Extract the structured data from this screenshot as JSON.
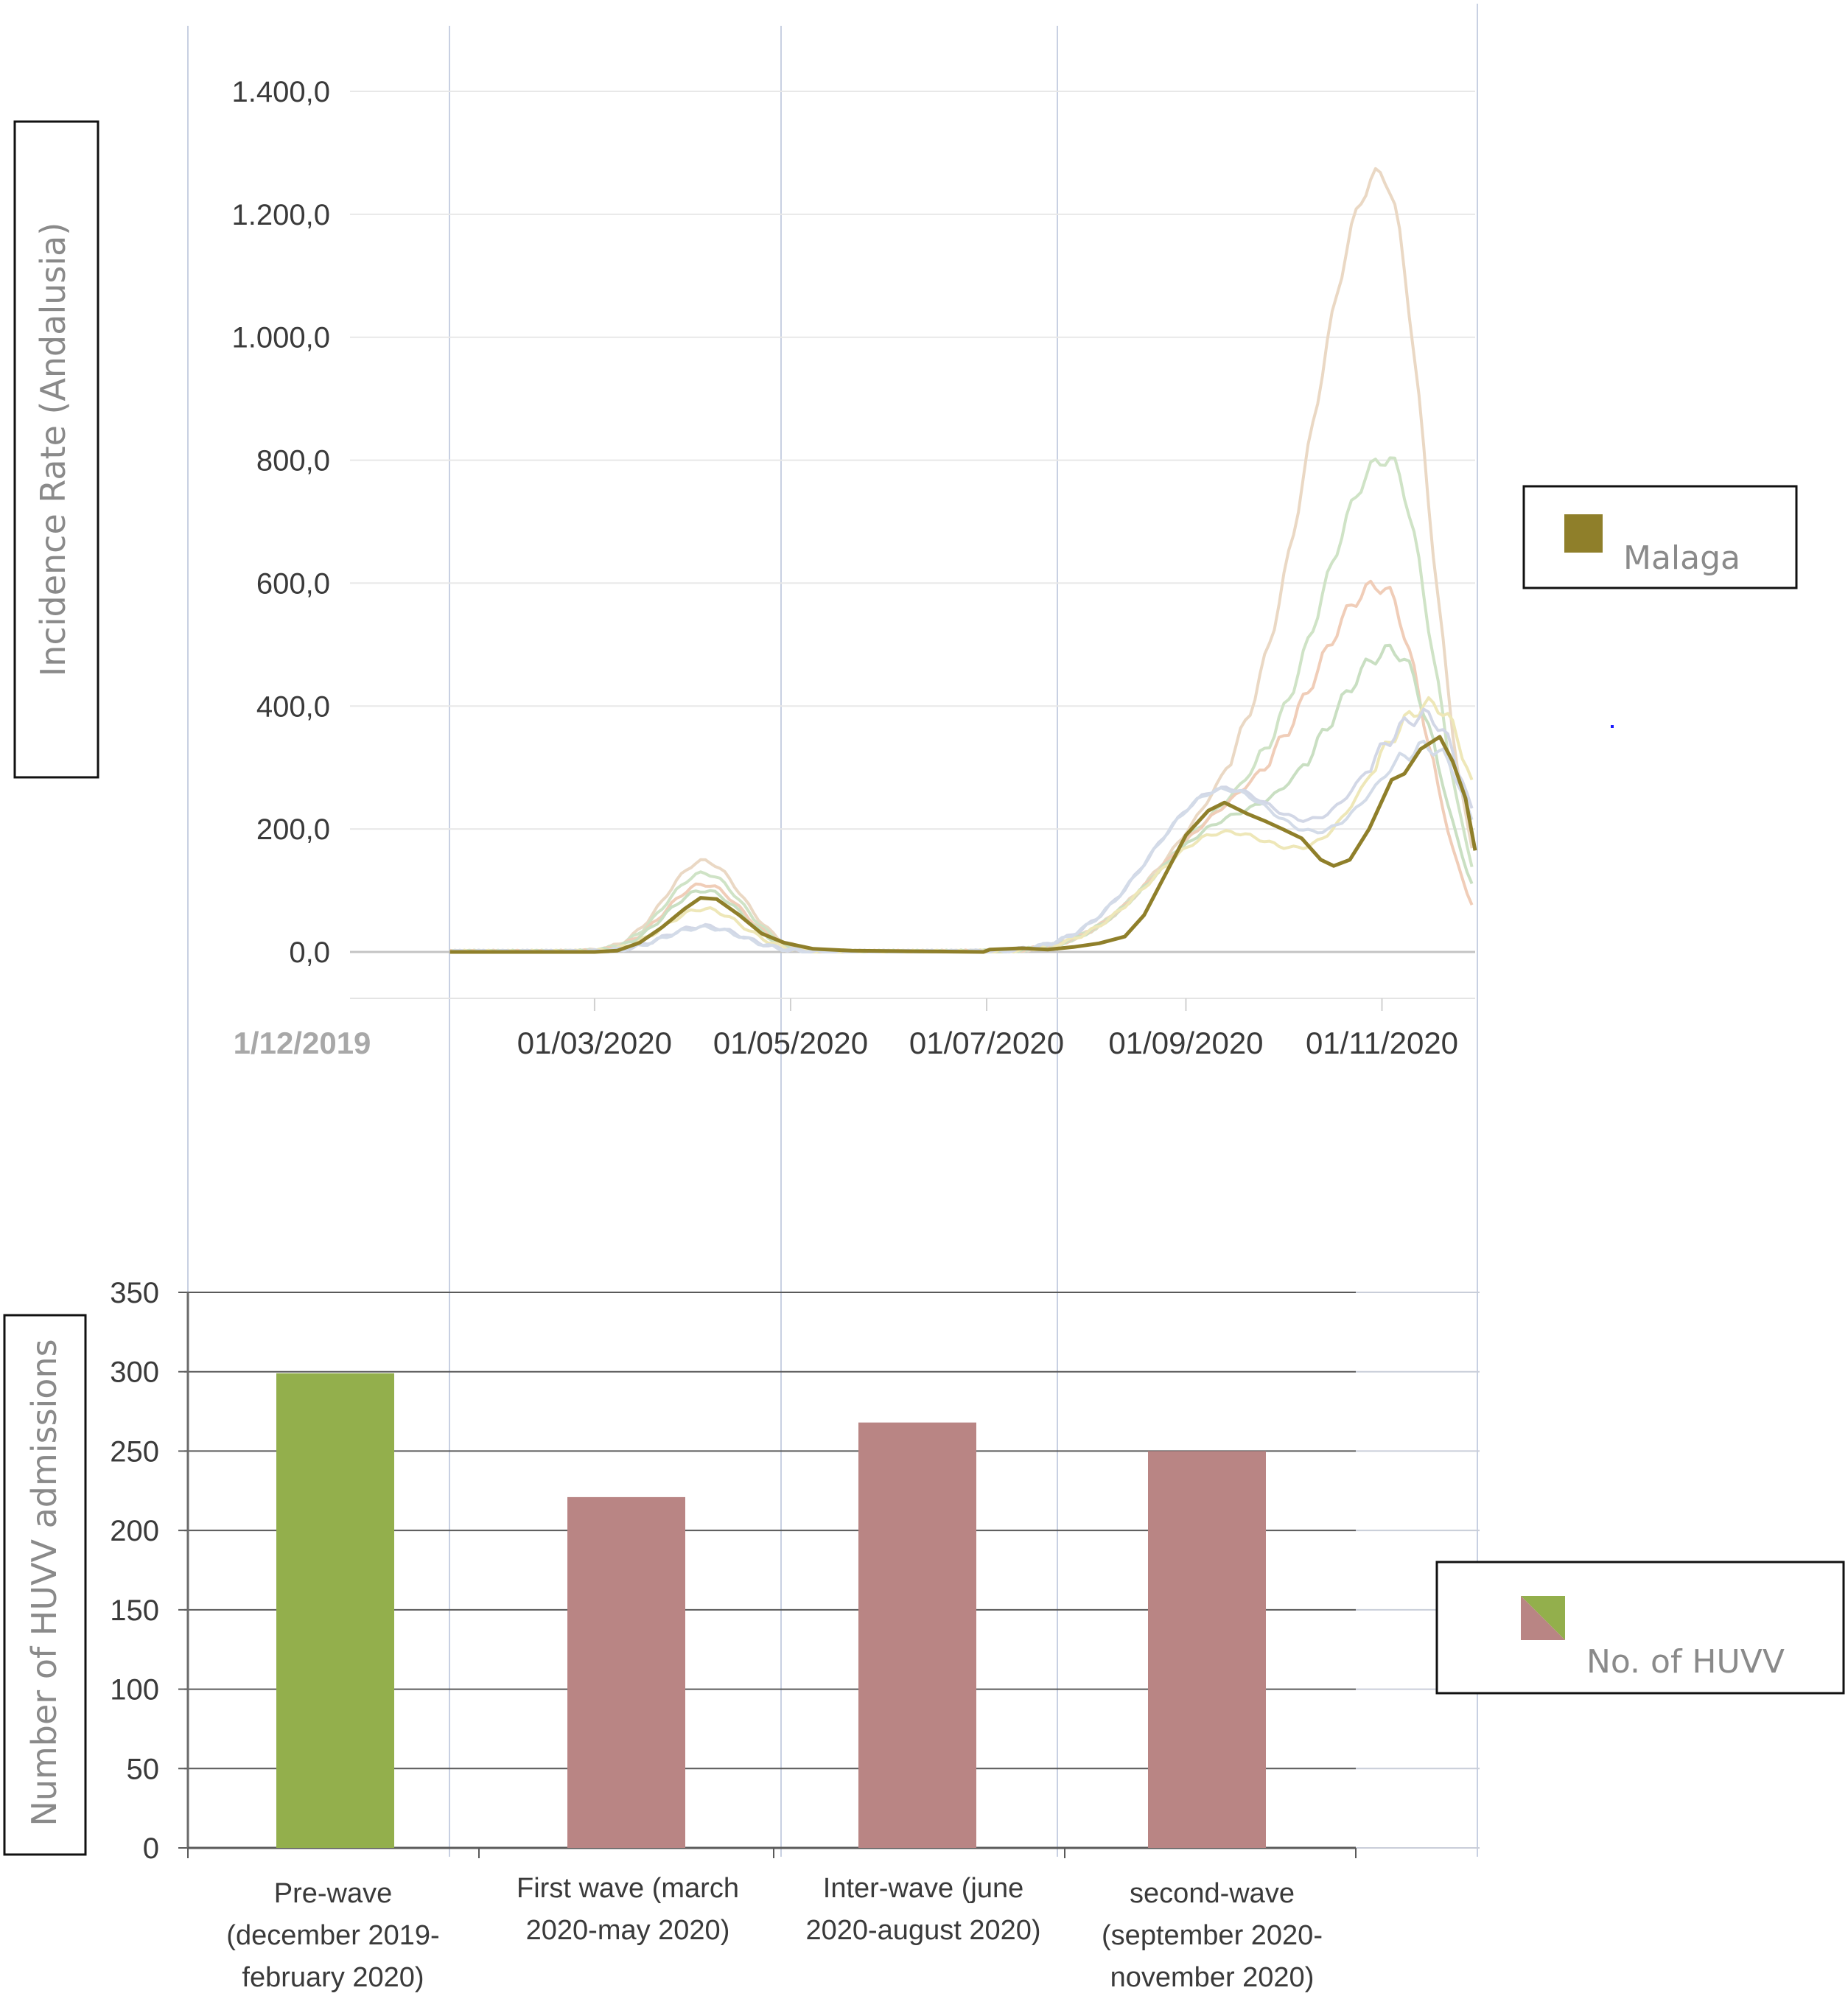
{
  "chart_data": [
    {
      "type": "line",
      "ylabel": "Incidence Rate (Andalusia)",
      "ylim": [
        0,
        1400
      ],
      "y_ticks": [
        "0,0",
        "200,0",
        "400,0",
        "600,0",
        "800,0",
        "1.000,0",
        "1.200,0",
        "1.400,0"
      ],
      "x_tick_labels": [
        "1/12/2019",
        "01/03/2020",
        "01/05/2020",
        "01/07/2020",
        "01/09/2020",
        "01/11/2020"
      ],
      "x_range": [
        "2019-12-01",
        "2020-11-30"
      ],
      "highlighted_series": {
        "name": "Malaga",
        "color": "#8f7f2a",
        "points": [
          [
            "2020-01-16",
            0
          ],
          [
            "2020-03-01",
            0
          ],
          [
            "2020-03-08",
            2
          ],
          [
            "2020-03-15",
            15
          ],
          [
            "2020-03-22",
            40
          ],
          [
            "2020-03-29",
            70
          ],
          [
            "2020-04-03",
            88
          ],
          [
            "2020-04-08",
            86
          ],
          [
            "2020-04-15",
            60
          ],
          [
            "2020-04-22",
            30
          ],
          [
            "2020-04-29",
            15
          ],
          [
            "2020-05-08",
            5
          ],
          [
            "2020-05-20",
            2
          ],
          [
            "2020-06-10",
            1
          ],
          [
            "2020-06-30",
            0
          ],
          [
            "2020-07-02",
            4
          ],
          [
            "2020-07-12",
            6
          ],
          [
            "2020-07-20",
            4
          ],
          [
            "2020-07-28",
            8
          ],
          [
            "2020-08-05",
            14
          ],
          [
            "2020-08-13",
            25
          ],
          [
            "2020-08-19",
            60
          ],
          [
            "2020-08-25",
            120
          ],
          [
            "2020-09-01",
            190
          ],
          [
            "2020-09-08",
            230
          ],
          [
            "2020-09-13",
            243
          ],
          [
            "2020-09-20",
            225
          ],
          [
            "2020-09-26",
            212
          ],
          [
            "2020-10-01",
            200
          ],
          [
            "2020-10-07",
            185
          ],
          [
            "2020-10-13",
            150
          ],
          [
            "2020-10-17",
            140
          ],
          [
            "2020-10-22",
            150
          ],
          [
            "2020-10-28",
            200
          ],
          [
            "2020-11-04",
            280
          ],
          [
            "2020-11-08",
            290
          ],
          [
            "2020-11-13",
            330
          ],
          [
            "2020-11-19",
            350
          ],
          [
            "2020-11-23",
            310
          ],
          [
            "2020-11-27",
            250
          ],
          [
            "2020-11-30",
            165
          ]
        ]
      },
      "background_series": [
        {
          "color": "#ead8c4",
          "wave1_peak": 148,
          "wave2_peak": 1400,
          "wave2_peak_date": "2020-11-01",
          "end_value": 300
        },
        {
          "color": "#cfe3c6",
          "wave1_peak": 128,
          "wave2_peak": 940,
          "wave2_peak_date": "2020-11-03",
          "end_value": 280
        },
        {
          "color": "#f0cdb8",
          "wave1_peak": 110,
          "wave2_peak": 730,
          "wave2_peak_date": "2020-11-01",
          "end_value": 240
        },
        {
          "color": "#c9dfc2",
          "wave1_peak": 100,
          "wave2_peak": 630,
          "wave2_peak_date": "2020-11-05",
          "end_value": 270
        },
        {
          "color": "#eee7b8",
          "wave1_peak": 70,
          "wave2_peak": 550,
          "wave2_peak_date": "2020-11-17",
          "end_value": 260
        },
        {
          "color": "#d2d7e6",
          "wave1_peak": 42,
          "wave2_peak": 530,
          "wave2_peak_date": "2020-11-15",
          "end_value": 230
        },
        {
          "color": "#d3dbe8",
          "wave1_peak": 40,
          "wave2_peak": 480,
          "wave2_peak_date": "2020-11-16",
          "end_value": 220
        }
      ]
    },
    {
      "type": "bar",
      "ylabel": "Number of HUVV admissions",
      "ylim": [
        0,
        350
      ],
      "y_ticks": [
        "0",
        "50",
        "100",
        "150",
        "200",
        "250",
        "300",
        "350"
      ],
      "categories": [
        [
          "Pre-wave",
          "(december 2019-",
          "february 2020)"
        ],
        [
          "First wave (march",
          "2020-may 2020)"
        ],
        [
          "Inter-wave (june",
          "2020-august 2020)"
        ],
        [
          "second-wave",
          "(september 2020-",
          "november 2020)"
        ]
      ],
      "values": [
        299,
        221,
        268,
        250
      ],
      "bar_colors": [
        "#93af4c",
        "#b98584",
        "#b98584",
        "#b98584"
      ],
      "legend": "No. of HUVV"
    }
  ],
  "colors": {
    "green": "#93af4c",
    "rose": "#b98584",
    "malaga": "#8f7f2a"
  }
}
